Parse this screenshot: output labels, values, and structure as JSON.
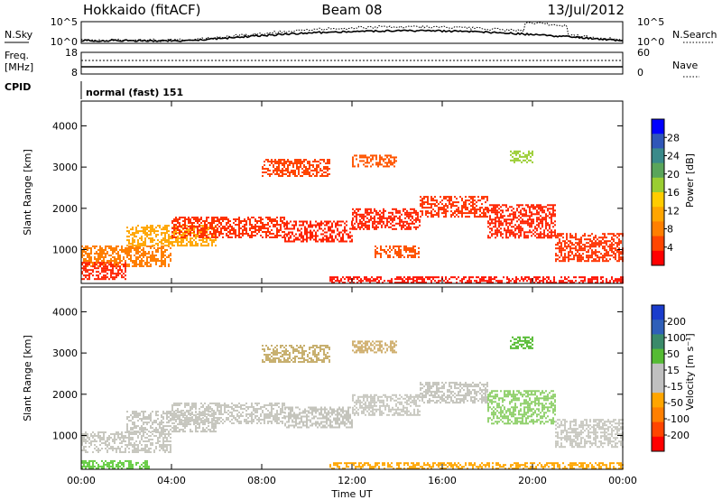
{
  "header": {
    "radar": "Hokkaido (fitACF)",
    "beam": "Beam 08",
    "date": "13/Jul/2012"
  },
  "summary_panel": {
    "nsky_label": "N.Sky",
    "nsky_ticks": [
      "10^5",
      "10^0"
    ],
    "nsearch_label": "N.Search",
    "nsearch_ticks": [
      "10^5",
      "10^0"
    ],
    "freq_label": "Freq.",
    "freq_unit": "[MHz]",
    "freq_ticks": [
      "18",
      "8"
    ],
    "nave_label": "Nave",
    "nave_ticks": [
      "60",
      "0"
    ],
    "cpid_label": "CPID",
    "cpid_text": "normal (fast) 151"
  },
  "chart_data": [
    {
      "type": "heatmap",
      "title": "",
      "quantity": "Power",
      "ylabel": "Slant Range [km]",
      "xlabel": "Time UT",
      "x_ticks": [
        "00:00",
        "04:00",
        "08:00",
        "12:00",
        "16:00",
        "20:00",
        "00:00"
      ],
      "y_ticks": [
        1000,
        2000,
        3000,
        4000
      ],
      "ylim": [
        180,
        4600
      ],
      "xlim_hours": [
        0,
        24
      ],
      "colorbar": {
        "label": "Power [dB]",
        "ticks": [
          "4",
          "8",
          "12",
          "16",
          "20",
          "24",
          "28"
        ],
        "colors": [
          "#0000ff",
          "#2f56b8",
          "#3a8a8a",
          "#5aa55a",
          "#9acd32",
          "#ffcc00",
          "#ffa500",
          "#ff7f00",
          "#ff4500",
          "#ff0000"
        ]
      },
      "echo_bands": [
        {
          "t0": 0,
          "t1": 4,
          "r0": 600,
          "r1": 1100,
          "color": "#ff7f00"
        },
        {
          "t0": 0,
          "t1": 2,
          "r0": 300,
          "r1": 700,
          "color": "#ff2200"
        },
        {
          "t0": 2,
          "t1": 6,
          "r0": 1100,
          "r1": 1600,
          "color": "#ffa500"
        },
        {
          "t0": 4,
          "t1": 9,
          "r0": 1300,
          "r1": 1800,
          "color": "#ff3300"
        },
        {
          "t0": 9,
          "t1": 12,
          "r0": 1200,
          "r1": 1700,
          "color": "#ff2200"
        },
        {
          "t0": 12,
          "t1": 15,
          "r0": 1500,
          "r1": 2000,
          "color": "#ff2200"
        },
        {
          "t0": 15,
          "t1": 18,
          "r0": 1800,
          "r1": 2300,
          "color": "#ff3300"
        },
        {
          "t0": 18,
          "t1": 21,
          "r0": 1300,
          "r1": 2100,
          "color": "#ff2200"
        },
        {
          "t0": 21,
          "t1": 24,
          "r0": 700,
          "r1": 1400,
          "color": "#ff3300"
        },
        {
          "t0": 8,
          "t1": 11,
          "r0": 2800,
          "r1": 3200,
          "color": "#ff4500"
        },
        {
          "t0": 12,
          "t1": 14,
          "r0": 3000,
          "r1": 3300,
          "color": "#ff5500"
        },
        {
          "t0": 11,
          "t1": 24,
          "r0": 200,
          "r1": 350,
          "color": "#ff1100"
        },
        {
          "t0": 13,
          "t1": 15,
          "r0": 800,
          "r1": 1100,
          "color": "#ff5500"
        },
        {
          "t0": 19,
          "t1": 20,
          "r0": 3100,
          "r1": 3400,
          "color": "#9acd32"
        }
      ]
    },
    {
      "type": "heatmap",
      "title": "",
      "quantity": "Velocity",
      "ylabel": "Slant Range [km]",
      "xlabel": "Time UT",
      "x_ticks": [
        "00:00",
        "04:00",
        "08:00",
        "12:00",
        "16:00",
        "20:00",
        "00:00"
      ],
      "y_ticks": [
        1000,
        2000,
        3000,
        4000
      ],
      "ylim": [
        180,
        4600
      ],
      "xlim_hours": [
        0,
        24
      ],
      "colorbar": {
        "label": "Velocity [m s⁻¹]",
        "ticks": [
          "200",
          "100",
          "50",
          "15",
          "-15",
          "-50",
          "-100",
          "-200"
        ],
        "colors": [
          "#1a3ccc",
          "#2f5fb8",
          "#3a8a6a",
          "#55bb33",
          "#c0c0c0",
          "#c0c0c0",
          "#ffa500",
          "#ff7f00",
          "#ff4500",
          "#ff0000"
        ]
      },
      "echo_bands": [
        {
          "t0": 0,
          "t1": 4,
          "r0": 600,
          "r1": 1100,
          "color": "#c8c8c0"
        },
        {
          "t0": 2,
          "t1": 6,
          "r0": 1100,
          "r1": 1600,
          "color": "#c4c4bc"
        },
        {
          "t0": 4,
          "t1": 9,
          "r0": 1300,
          "r1": 1800,
          "color": "#c8c8c0"
        },
        {
          "t0": 9,
          "t1": 12,
          "r0": 1200,
          "r1": 1700,
          "color": "#c4c4bc"
        },
        {
          "t0": 12,
          "t1": 15,
          "r0": 1500,
          "r1": 2000,
          "color": "#c8c8c0"
        },
        {
          "t0": 15,
          "t1": 18,
          "r0": 1800,
          "r1": 2300,
          "color": "#c4c4bc"
        },
        {
          "t0": 18,
          "t1": 21,
          "r0": 1300,
          "r1": 2100,
          "color": "#8fd06a"
        },
        {
          "t0": 21,
          "t1": 24,
          "r0": 700,
          "r1": 1400,
          "color": "#c8c8c0"
        },
        {
          "t0": 8,
          "t1": 11,
          "r0": 2800,
          "r1": 3200,
          "color": "#c8b070"
        },
        {
          "t0": 12,
          "t1": 14,
          "r0": 3000,
          "r1": 3300,
          "color": "#d0b070"
        },
        {
          "t0": 11,
          "t1": 24,
          "r0": 200,
          "r1": 350,
          "color": "#ffa500"
        },
        {
          "t0": 0,
          "t1": 3,
          "r0": 200,
          "r1": 400,
          "color": "#66cc44"
        },
        {
          "t0": 19,
          "t1": 20,
          "r0": 3100,
          "r1": 3400,
          "color": "#55bb33"
        }
      ]
    }
  ]
}
